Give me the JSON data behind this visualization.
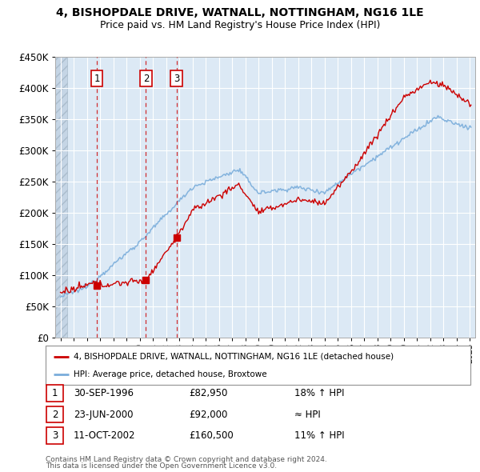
{
  "title": "4, BISHOPDALE DRIVE, WATNALL, NOTTINGHAM, NG16 1LE",
  "subtitle": "Price paid vs. HM Land Registry's House Price Index (HPI)",
  "sales": [
    {
      "label": "1",
      "date": "30-SEP-1996",
      "price": 82950,
      "x": 1996.75,
      "hpi_pct": "18% ↑ HPI"
    },
    {
      "label": "2",
      "date": "23-JUN-2000",
      "price": 92000,
      "x": 2000.47,
      "hpi_pct": "≈ HPI"
    },
    {
      "label": "3",
      "date": "11-OCT-2002",
      "price": 160500,
      "x": 2002.78,
      "hpi_pct": "11% ↑ HPI"
    }
  ],
  "legend_line1": "4, BISHOPDALE DRIVE, WATNALL, NOTTINGHAM, NG16 1LE (detached house)",
  "legend_line2": "HPI: Average price, detached house, Broxtowe",
  "footer_line1": "Contains HM Land Registry data © Crown copyright and database right 2024.",
  "footer_line2": "This data is licensed under the Open Government Licence v3.0.",
  "ylim": [
    0,
    450000
  ],
  "xlim": [
    1993.6,
    2025.4
  ],
  "red_color": "#cc0000",
  "blue_color": "#7aaddb",
  "bg_color": "#dce9f5",
  "grid_color": "#ffffff",
  "hatch_region_end": 1994.5
}
